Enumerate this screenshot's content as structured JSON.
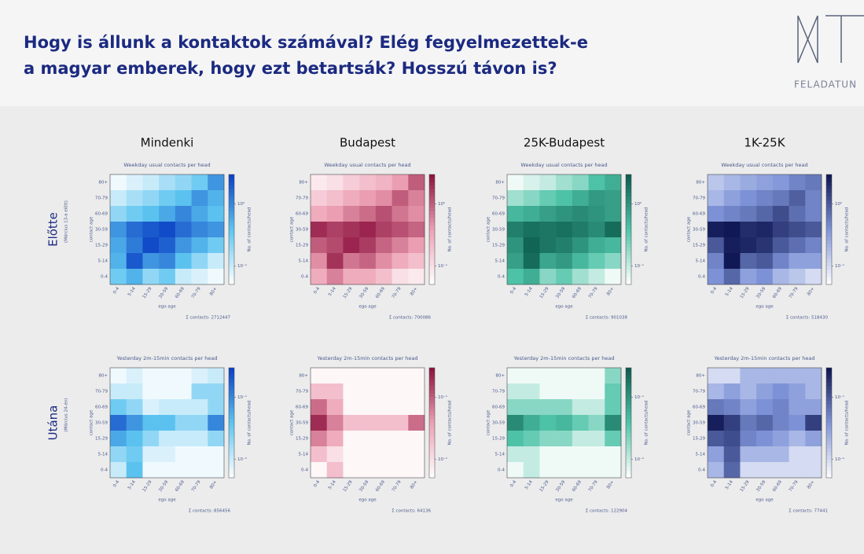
{
  "header": {
    "title_lines": [
      "Hogy is állunk a kontaktok számával? Elég fegyelmezettek-e",
      "a magyar emberek, hogy ezt betartsák? Hosszú távon is?"
    ],
    "logo_text": "FELADATUN"
  },
  "columns": [
    "Mindenki",
    "Budapest",
    "25K-Budapest",
    "1K-25K"
  ],
  "rows": [
    {
      "label": "Előtte",
      "note": "(Március 13-a előtt)"
    },
    {
      "label": "Utána",
      "note": "(Március 24-én)"
    }
  ],
  "chart_data": [
    {
      "type": "heatmap",
      "title": "Weekday usual contacts per head",
      "xlabel": "ego age",
      "ylabel": "contact age",
      "colorbar_label": "No. of contacts/head",
      "total": "Σ contacts: 2712447",
      "log_scale": true,
      "x": [
        "0-4",
        "5-14",
        "15-29",
        "30-59",
        "60-69",
        "70-79",
        "80+"
      ],
      "y": [
        "80+",
        "70-79",
        "60-69",
        "30-59",
        "15-29",
        "5-14",
        "0-4"
      ],
      "clim": [
        0.05,
        3
      ],
      "cticks": [
        {
          "value": 1,
          "label": "10⁰"
        },
        {
          "value": 0.1,
          "label": "10⁻¹"
        }
      ],
      "colors": [
        "#ffffff",
        "#5cc4f0",
        "#0a3fc4"
      ],
      "values": [
        [
          0.06,
          0.08,
          0.1,
          0.15,
          0.2,
          0.3,
          0.8
        ],
        [
          0.1,
          0.15,
          0.2,
          0.3,
          0.4,
          0.8,
          0.5
        ],
        [
          0.2,
          0.3,
          0.4,
          0.6,
          1.0,
          0.6,
          0.4
        ],
        [
          0.8,
          1.5,
          2.0,
          2.5,
          1.5,
          1.0,
          0.8
        ],
        [
          0.6,
          1.2,
          2.5,
          1.8,
          0.8,
          0.5,
          0.3
        ],
        [
          0.5,
          2.0,
          0.8,
          1.0,
          0.4,
          0.2,
          0.1
        ],
        [
          0.3,
          0.5,
          0.2,
          0.3,
          0.1,
          0.08,
          0.06
        ]
      ]
    },
    {
      "type": "heatmap",
      "title": "Weekday usual contacts per head",
      "xlabel": "ego age",
      "ylabel": "contact age",
      "colorbar_label": "No. of contacts/head",
      "total": "Σ contacts: 700086",
      "log_scale": true,
      "x": [
        "0-4",
        "5-14",
        "15-29",
        "30-59",
        "60-69",
        "70-79",
        "80+"
      ],
      "y": [
        "80+",
        "70-79",
        "60-69",
        "30-59",
        "15-29",
        "5-14",
        "0-4"
      ],
      "clim": [
        0.05,
        3
      ],
      "cticks": [
        {
          "value": 1,
          "label": "10⁰"
        },
        {
          "value": 0.1,
          "label": "10⁻¹"
        }
      ],
      "colors": [
        "#ffffff",
        "#eda0b4",
        "#8c0f3c"
      ],
      "values": [
        [
          0.08,
          0.1,
          0.15,
          0.2,
          0.25,
          0.4,
          1.0
        ],
        [
          0.15,
          0.2,
          0.3,
          0.4,
          0.5,
          1.0,
          0.6
        ],
        [
          0.3,
          0.4,
          0.6,
          0.8,
          1.2,
          0.7,
          0.5
        ],
        [
          2.0,
          1.5,
          1.8,
          2.2,
          1.5,
          1.2,
          0.9
        ],
        [
          1.0,
          1.3,
          2.2,
          1.6,
          0.9,
          0.6,
          0.4
        ],
        [
          0.5,
          1.8,
          0.7,
          0.9,
          0.5,
          0.3,
          0.2
        ],
        [
          0.3,
          0.6,
          0.3,
          0.3,
          0.2,
          0.1,
          0.08
        ]
      ]
    },
    {
      "type": "heatmap",
      "title": "Weekday usual contacts per head",
      "xlabel": "ego age",
      "ylabel": "contact age",
      "colorbar_label": "No. of contacts/head",
      "total": "Σ contacts: 901038",
      "log_scale": true,
      "x": [
        "0-4",
        "5-14",
        "15-29",
        "30-59",
        "60-69",
        "70-79",
        "80+"
      ],
      "y": [
        "80+",
        "70-79",
        "60-69",
        "30-59",
        "15-29",
        "5-14",
        "0-4"
      ],
      "clim": [
        0.05,
        3
      ],
      "cticks": [
        {
          "value": 1,
          "label": "10⁰"
        },
        {
          "value": 0.1,
          "label": "10⁻¹"
        }
      ],
      "colors": [
        "#ffffff",
        "#4fc4a8",
        "#0b5c4c"
      ],
      "values": [
        [
          0.06,
          0.08,
          0.1,
          0.15,
          0.2,
          0.4,
          0.6
        ],
        [
          0.15,
          0.2,
          0.3,
          0.4,
          0.6,
          0.9,
          0.8
        ],
        [
          0.5,
          0.6,
          0.8,
          1.0,
          1.2,
          1.0,
          0.8
        ],
        [
          1.5,
          2.0,
          1.8,
          2.0,
          1.6,
          1.2,
          2.2
        ],
        [
          1.0,
          2.5,
          1.8,
          1.5,
          1.0,
          0.6,
          0.5
        ],
        [
          0.8,
          2.2,
          0.7,
          0.9,
          0.5,
          0.3,
          0.2
        ],
        [
          0.4,
          0.6,
          0.2,
          0.3,
          0.15,
          0.1,
          0.06
        ]
      ]
    },
    {
      "type": "heatmap",
      "title": "Weekday usual contacts per head",
      "xlabel": "ego age",
      "ylabel": "contact age",
      "colorbar_label": "No. of contacts/head",
      "total": "Σ contacts: 518430",
      "log_scale": true,
      "x": [
        "0-4",
        "5-14",
        "15-29",
        "30-59",
        "60-69",
        "70-79",
        "80+"
      ],
      "y": [
        "80+",
        "70-79",
        "60-69",
        "30-59",
        "15-29",
        "5-14",
        "0-4"
      ],
      "clim": [
        0.05,
        3
      ],
      "cticks": [
        {
          "value": 1,
          "label": "10⁰"
        },
        {
          "value": 0.1,
          "label": "10⁻¹"
        }
      ],
      "colors": [
        "#ffffff",
        "#7f94d8",
        "#0c1450"
      ],
      "values": [
        [
          0.15,
          0.2,
          0.25,
          0.3,
          0.35,
          0.5,
          0.6
        ],
        [
          0.2,
          0.3,
          0.4,
          0.5,
          0.6,
          0.9,
          0.5
        ],
        [
          0.4,
          0.5,
          0.6,
          0.8,
          1.2,
          0.7,
          0.5
        ],
        [
          2.5,
          2.8,
          2.0,
          2.2,
          1.5,
          1.2,
          1.0
        ],
        [
          1.0,
          2.5,
          2.2,
          1.8,
          1.0,
          0.7,
          0.5
        ],
        [
          0.5,
          2.8,
          0.8,
          1.0,
          0.5,
          0.3,
          0.3
        ],
        [
          0.4,
          0.8,
          0.3,
          0.4,
          0.2,
          0.15,
          0.1
        ]
      ]
    },
    {
      "type": "heatmap",
      "title": "Yesterday 2m-15min contacts per head",
      "xlabel": "ego age",
      "ylabel": "contact age",
      "colorbar_label": "No. of contacts/head",
      "total": "Σ contacts: 856456",
      "log_scale": true,
      "x": [
        "0-4",
        "5-14",
        "15-29",
        "30-59",
        "60-69",
        "70-79",
        "80+"
      ],
      "y": [
        "80+",
        "70-79",
        "60-69",
        "30-59",
        "15-29",
        "5-14",
        "0-4"
      ],
      "clim": [
        0.005,
        0.3
      ],
      "cticks": [
        {
          "value": 0.1,
          "label": "10⁻¹"
        },
        {
          "value": 0.01,
          "label": "10⁻²"
        }
      ],
      "colors": [
        "#ffffff",
        "#5cc4f0",
        "#0a3fc4"
      ],
      "values": [
        [
          0.006,
          0.008,
          0.006,
          0.006,
          0.006,
          0.008,
          0.01
        ],
        [
          0.01,
          0.01,
          0.006,
          0.006,
          0.006,
          0.02,
          0.02
        ],
        [
          0.03,
          0.02,
          0.008,
          0.01,
          0.01,
          0.01,
          0.02
        ],
        [
          0.15,
          0.08,
          0.04,
          0.04,
          0.02,
          0.02,
          0.1
        ],
        [
          0.06,
          0.04,
          0.02,
          0.01,
          0.01,
          0.01,
          0.02
        ],
        [
          0.02,
          0.03,
          0.008,
          0.008,
          0.006,
          0.006,
          0.006
        ],
        [
          0.01,
          0.04,
          0.006,
          0.006,
          0.006,
          0.006,
          0.006
        ]
      ]
    },
    {
      "type": "heatmap",
      "title": "Yesterday 2m-15min contacts per head",
      "xlabel": "ego age",
      "ylabel": "contact age",
      "colorbar_label": "No. of contacts/head",
      "total": "Σ contacts: 64136",
      "log_scale": true,
      "x": [
        "0-4",
        "5-14",
        "15-29",
        "30-59",
        "60-69",
        "70-79",
        "80+"
      ],
      "y": [
        "80+",
        "70-79",
        "60-69",
        "30-59",
        "15-29",
        "5-14",
        "0-4"
      ],
      "clim": [
        0.005,
        0.3
      ],
      "cticks": [
        {
          "value": 0.1,
          "label": "10⁻¹"
        },
        {
          "value": 0.01,
          "label": "10⁻²"
        }
      ],
      "colors": [
        "#ffffff",
        "#eda0b4",
        "#8c0f3c"
      ],
      "values": [
        [
          0.006,
          0.006,
          0.006,
          0.006,
          0.006,
          0.006,
          0.006
        ],
        [
          0.02,
          0.02,
          0.006,
          0.006,
          0.006,
          0.006,
          0.006
        ],
        [
          0.08,
          0.03,
          0.006,
          0.006,
          0.006,
          0.006,
          0.006
        ],
        [
          0.2,
          0.06,
          0.02,
          0.02,
          0.02,
          0.02,
          0.08
        ],
        [
          0.06,
          0.03,
          0.006,
          0.006,
          0.006,
          0.006,
          0.006
        ],
        [
          0.02,
          0.01,
          0.006,
          0.006,
          0.006,
          0.006,
          0.006
        ],
        [
          0.006,
          0.02,
          0.006,
          0.006,
          0.006,
          0.006,
          0.006
        ]
      ]
    },
    {
      "type": "heatmap",
      "title": "Yesterday 2m-15min contacts per head",
      "xlabel": "ego age",
      "ylabel": "contact age",
      "colorbar_label": "No. of contacts/head",
      "total": "Σ contacts: 122904",
      "log_scale": true,
      "x": [
        "0-4",
        "5-14",
        "15-29",
        "30-59",
        "60-69",
        "70-79",
        "80+"
      ],
      "y": [
        "80+",
        "70-79",
        "60-69",
        "30-59",
        "15-29",
        "5-14",
        "0-4"
      ],
      "clim": [
        0.005,
        0.3
      ],
      "cticks": [
        {
          "value": 0.1,
          "label": "10⁻¹"
        },
        {
          "value": 0.01,
          "label": "10⁻²"
        }
      ],
      "colors": [
        "#ffffff",
        "#4fc4a8",
        "#0b5c4c"
      ],
      "values": [
        [
          0.006,
          0.006,
          0.006,
          0.006,
          0.006,
          0.006,
          0.02
        ],
        [
          0.01,
          0.01,
          0.006,
          0.006,
          0.006,
          0.006,
          0.03
        ],
        [
          0.02,
          0.02,
          0.02,
          0.02,
          0.01,
          0.01,
          0.03
        ],
        [
          0.12,
          0.06,
          0.04,
          0.05,
          0.03,
          0.02,
          0.12
        ],
        [
          0.04,
          0.03,
          0.02,
          0.02,
          0.01,
          0.01,
          0.03
        ],
        [
          0.01,
          0.01,
          0.006,
          0.006,
          0.006,
          0.006,
          0.006
        ],
        [
          0.006,
          0.01,
          0.006,
          0.006,
          0.006,
          0.006,
          0.006
        ]
      ]
    },
    {
      "type": "heatmap",
      "title": "Yesterday 2m-15min contacts per head",
      "xlabel": "ego age",
      "ylabel": "contact age",
      "colorbar_label": "No. of contacts/head",
      "total": "Σ contacts: 77441",
      "log_scale": true,
      "x": [
        "0-4",
        "5-14",
        "15-29",
        "30-59",
        "60-69",
        "70-79",
        "80+"
      ],
      "y": [
        "80+",
        "70-79",
        "60-69",
        "30-59",
        "15-29",
        "5-14",
        "0-4"
      ],
      "clim": [
        0.005,
        0.3
      ],
      "cticks": [
        {
          "value": 0.1,
          "label": "10⁻¹"
        },
        {
          "value": 0.01,
          "label": "10⁻²"
        }
      ],
      "colors": [
        "#ffffff",
        "#7f94d8",
        "#0c1450"
      ],
      "values": [
        [
          0.01,
          0.01,
          0.02,
          0.02,
          0.02,
          0.02,
          0.02
        ],
        [
          0.02,
          0.03,
          0.02,
          0.03,
          0.04,
          0.03,
          0.02
        ],
        [
          0.06,
          0.05,
          0.03,
          0.04,
          0.05,
          0.03,
          0.03
        ],
        [
          0.25,
          0.15,
          0.06,
          0.08,
          0.05,
          0.04,
          0.15
        ],
        [
          0.1,
          0.12,
          0.05,
          0.04,
          0.03,
          0.02,
          0.03
        ],
        [
          0.03,
          0.1,
          0.02,
          0.02,
          0.02,
          0.01,
          0.01
        ],
        [
          0.02,
          0.08,
          0.01,
          0.01,
          0.01,
          0.01,
          0.01
        ]
      ]
    }
  ]
}
